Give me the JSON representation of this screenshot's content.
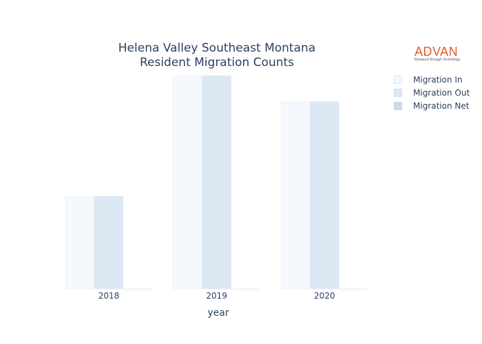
{
  "chart_data": {
    "type": "bar",
    "title_lines": [
      "Helena Valley Southeast Montana",
      "Resident Migration Counts"
    ],
    "xlabel": "year",
    "ylabel": "",
    "categories": [
      "2018",
      "2019",
      "2020"
    ],
    "series": [
      {
        "name": "Migration In",
        "color": "#f5f9fd",
        "values": [
          430,
          990,
          870
        ]
      },
      {
        "name": "Migration Out",
        "color": "#dde8f5",
        "values": [
          430,
          990,
          870
        ]
      },
      {
        "name": "Migration Net",
        "color": "#c9d9ee",
        "values": [
          0,
          0,
          0
        ]
      }
    ],
    "ylim": [
      0,
      1000
    ],
    "grid": false,
    "legend_position": "top-right"
  },
  "logo": {
    "main": "ADVAN",
    "sub": "Research through Technology"
  }
}
